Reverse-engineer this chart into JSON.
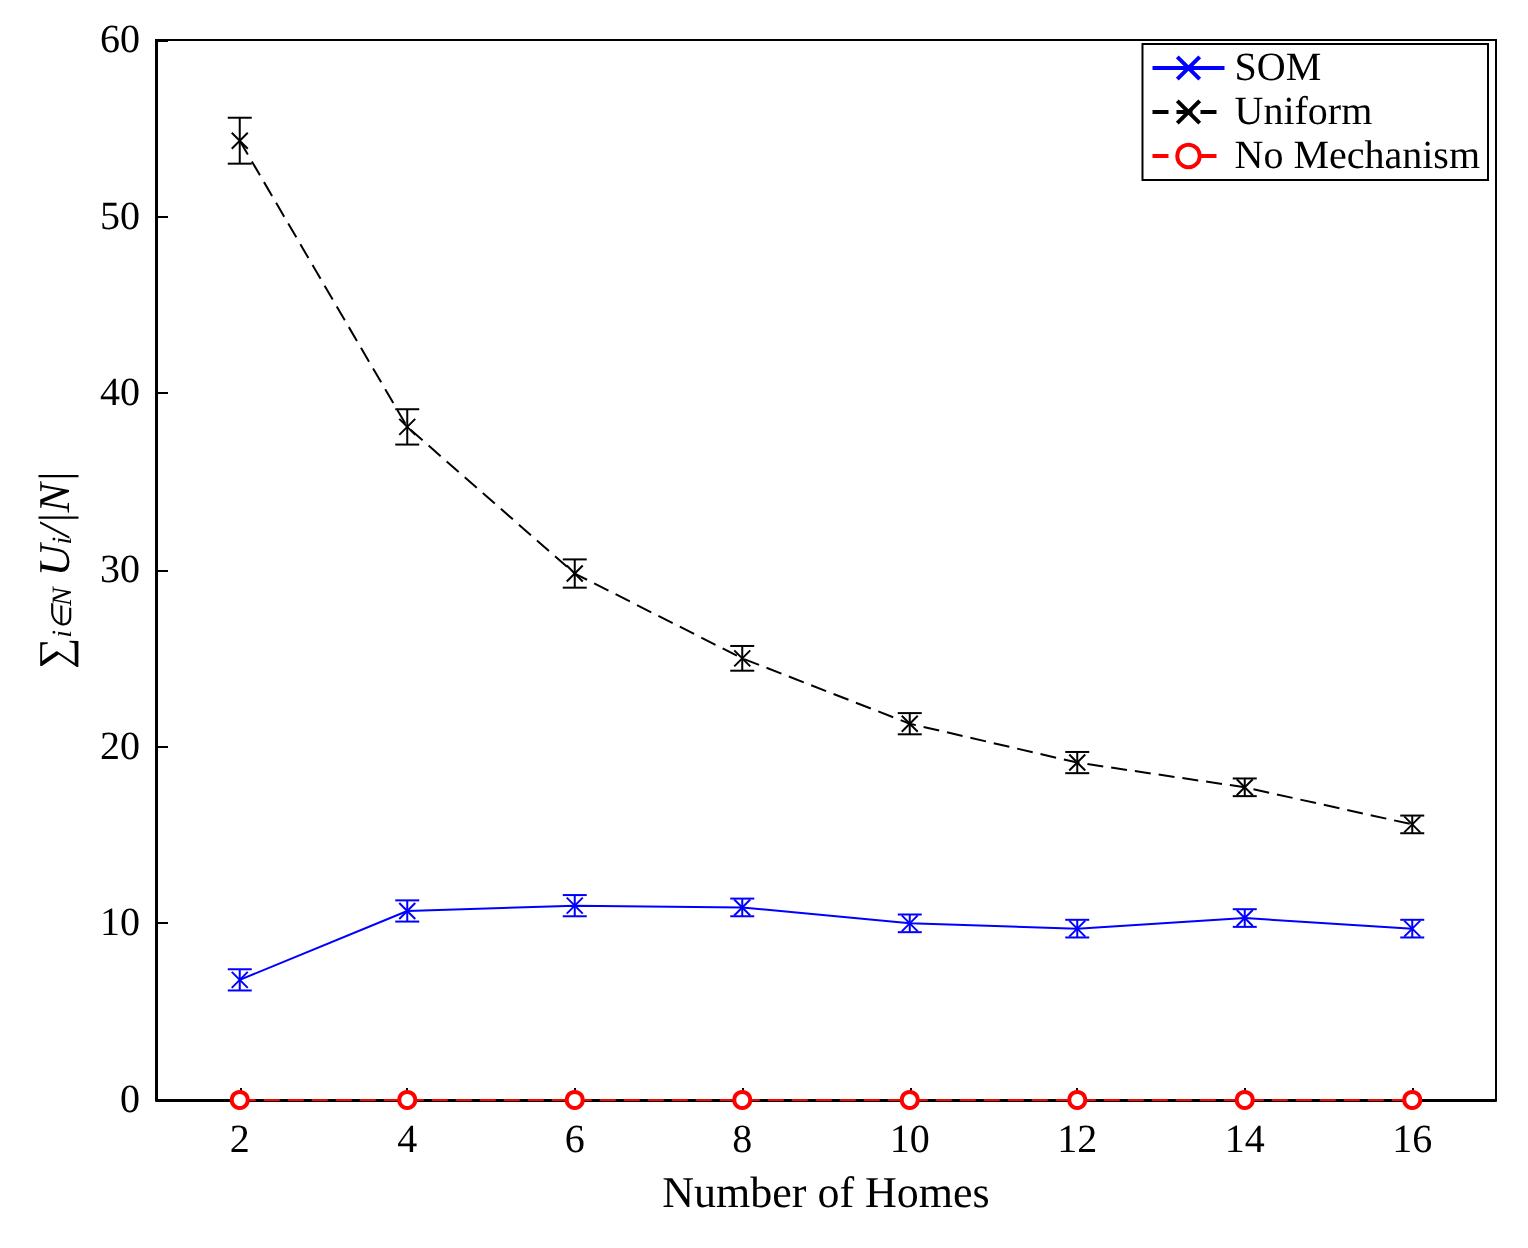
{
  "chart_data": {
    "type": "line",
    "xlabel": "Number of Homes",
    "ylabel": "∑$_{i∈N}$ U$_{i}$/|N|",
    "x": [
      2,
      4,
      6,
      8,
      10,
      12,
      14,
      16
    ],
    "series": [
      {
        "name": "SOM",
        "color": "#0000ff",
        "marker": "cross",
        "line_style": "solid",
        "values": [
          6.8,
          10.7,
          11.0,
          10.9,
          10.0,
          9.7,
          10.3,
          9.7
        ],
        "errors": [
          0.6,
          0.6,
          0.6,
          0.5,
          0.5,
          0.5,
          0.5,
          0.5
        ]
      },
      {
        "name": "Uniform",
        "color": "#000000",
        "marker": "cross",
        "line_style": "dashed",
        "values": [
          54.3,
          38.1,
          29.8,
          25.0,
          21.3,
          19.1,
          17.7,
          15.6
        ],
        "errors": [
          1.3,
          1.0,
          0.8,
          0.7,
          0.6,
          0.6,
          0.5,
          0.5
        ]
      },
      {
        "name": "No Mechanism",
        "color": "#ff0000",
        "marker": "circle",
        "line_style": "dashed",
        "values": [
          0,
          0,
          0,
          0,
          0,
          0,
          0,
          0
        ]
      }
    ],
    "xlim": [
      1,
      17
    ],
    "xticks": [
      2,
      4,
      6,
      8,
      10,
      12,
      14,
      16
    ],
    "ylim": [
      0,
      60
    ],
    "yticks": [
      0,
      10,
      20,
      30,
      40,
      50,
      60
    ],
    "grid": false,
    "legend": "top right"
  }
}
